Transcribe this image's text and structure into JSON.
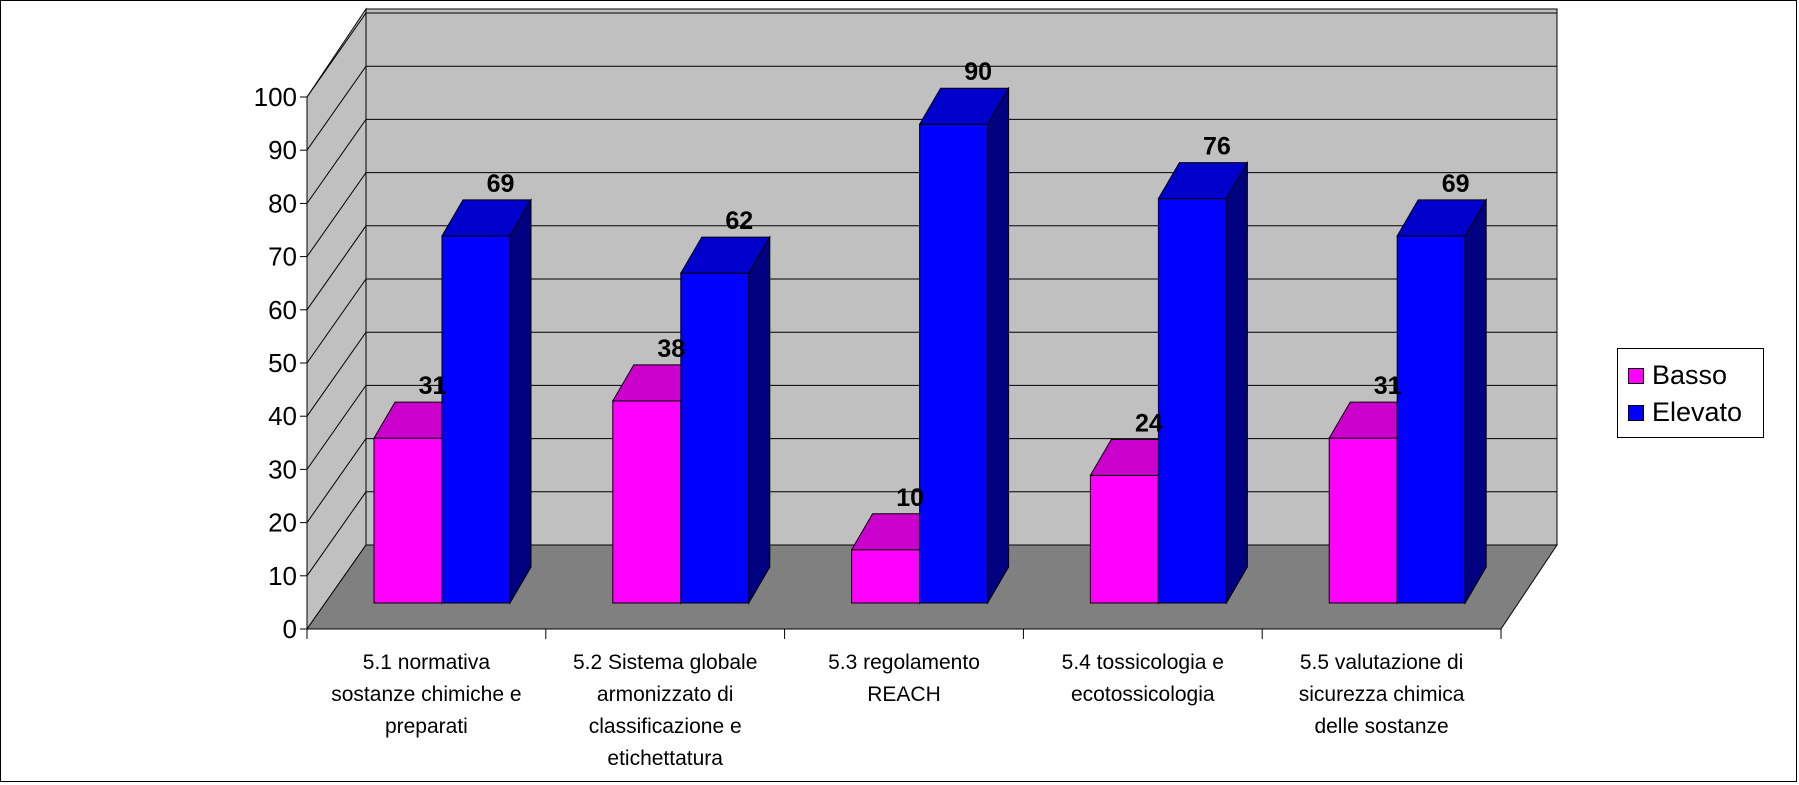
{
  "chart_data": {
    "type": "bar",
    "title": "",
    "xlabel": "",
    "ylabel": "",
    "ylim": [
      0,
      100
    ],
    "y_ticks": [
      "0",
      "10",
      "20",
      "30",
      "40",
      "50",
      "60",
      "70",
      "80",
      "90",
      "100"
    ],
    "categories": [
      "5.1 normativa sostanze chimiche e preparati",
      "5.2 Sistema globale armonizzato di classificazione e etichettatura",
      "5.3 regolamento REACH",
      "5.4 tossicologia e ecotossicologia",
      "5.5 valutazione di sicurezza chimica delle sostanze"
    ],
    "category_lines": [
      [
        "5.1 normativa",
        "sostanze chimiche e",
        "preparati"
      ],
      [
        "5.2 Sistema globale",
        "armonizzato di",
        "classificazione e",
        "etichettatura"
      ],
      [
        "5.3 regolamento",
        "REACH"
      ],
      [
        "5.4 tossicologia e",
        "ecotossicologia"
      ],
      [
        "5.5 valutazione di",
        "sicurezza chimica",
        "delle sostanze"
      ]
    ],
    "series": [
      {
        "name": "Basso",
        "color": "#ff00ff",
        "top_color": "#cc00cc",
        "side_color": "#990099",
        "values": [
          31,
          38,
          10,
          24,
          31
        ]
      },
      {
        "name": "Elevato",
        "color": "#0000ff",
        "top_color": "#0000cc",
        "side_color": "#000080",
        "values": [
          69,
          62,
          90,
          76,
          69
        ]
      }
    ],
    "grid": true,
    "legend_position": "right",
    "style": "3d-column"
  }
}
